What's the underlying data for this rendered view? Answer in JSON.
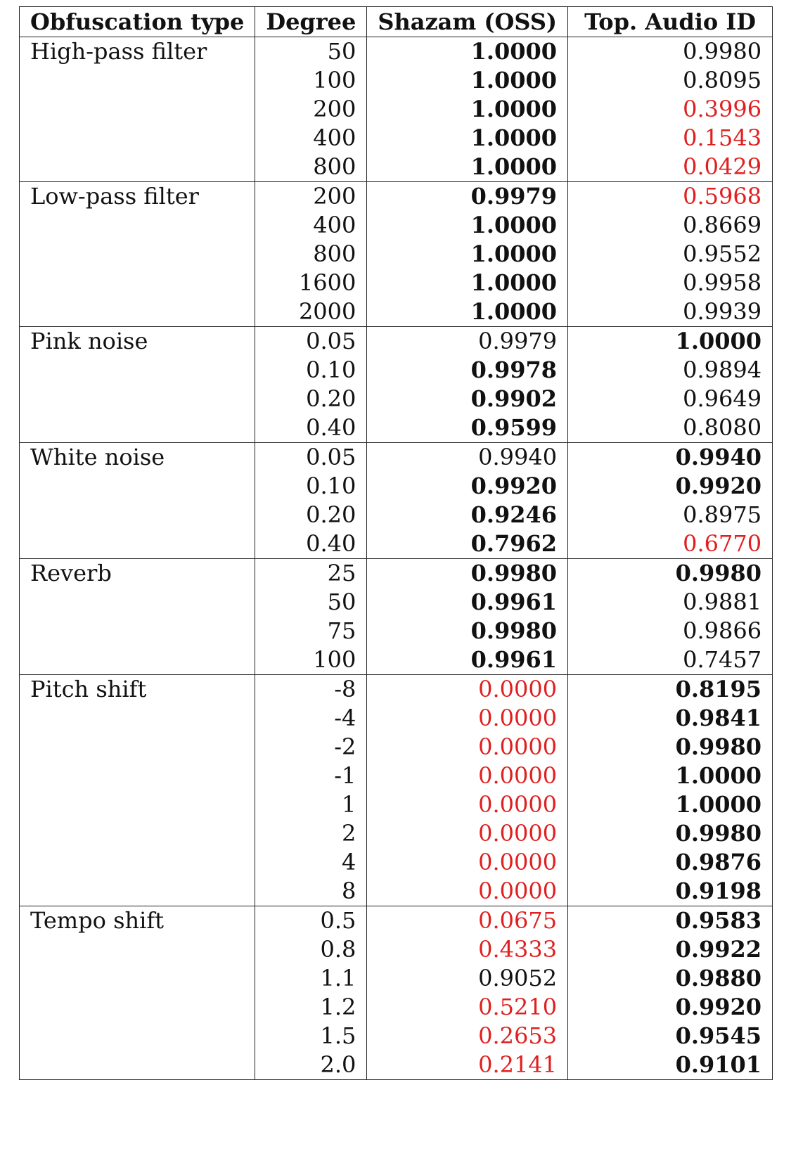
{
  "colors": {
    "highlight": "#e02020"
  },
  "table": {
    "headers": [
      "Obfuscation type",
      "Degree",
      "Shazam (OSS)",
      "Top. Audio ID"
    ],
    "groups": [
      {
        "type": "High-pass filter",
        "rows": [
          {
            "degree": "50",
            "shazam": {
              "v": "1.0000",
              "b": true
            },
            "top": {
              "v": "0.9980"
            }
          },
          {
            "degree": "100",
            "shazam": {
              "v": "1.0000",
              "b": true
            },
            "top": {
              "v": "0.8095"
            }
          },
          {
            "degree": "200",
            "shazam": {
              "v": "1.0000",
              "b": true
            },
            "top": {
              "v": "0.3996",
              "r": true
            }
          },
          {
            "degree": "400",
            "shazam": {
              "v": "1.0000",
              "b": true
            },
            "top": {
              "v": "0.1543",
              "r": true
            }
          },
          {
            "degree": "800",
            "shazam": {
              "v": "1.0000",
              "b": true
            },
            "top": {
              "v": "0.0429",
              "r": true
            }
          }
        ]
      },
      {
        "type": "Low-pass filter",
        "rows": [
          {
            "degree": "200",
            "shazam": {
              "v": "0.9979",
              "b": true
            },
            "top": {
              "v": "0.5968",
              "r": true
            }
          },
          {
            "degree": "400",
            "shazam": {
              "v": "1.0000",
              "b": true
            },
            "top": {
              "v": "0.8669"
            }
          },
          {
            "degree": "800",
            "shazam": {
              "v": "1.0000",
              "b": true
            },
            "top": {
              "v": "0.9552"
            }
          },
          {
            "degree": "1600",
            "shazam": {
              "v": "1.0000",
              "b": true
            },
            "top": {
              "v": "0.9958"
            }
          },
          {
            "degree": "2000",
            "shazam": {
              "v": "1.0000",
              "b": true
            },
            "top": {
              "v": "0.9939"
            }
          }
        ]
      },
      {
        "type": "Pink noise",
        "rows": [
          {
            "degree": "0.05",
            "shazam": {
              "v": "0.9979"
            },
            "top": {
              "v": "1.0000",
              "b": true
            }
          },
          {
            "degree": "0.10",
            "shazam": {
              "v": "0.9978",
              "b": true
            },
            "top": {
              "v": "0.9894"
            }
          },
          {
            "degree": "0.20",
            "shazam": {
              "v": "0.9902",
              "b": true
            },
            "top": {
              "v": "0.9649"
            }
          },
          {
            "degree": "0.40",
            "shazam": {
              "v": "0.9599",
              "b": true
            },
            "top": {
              "v": "0.8080"
            }
          }
        ]
      },
      {
        "type": "White noise",
        "rows": [
          {
            "degree": "0.05",
            "shazam": {
              "v": "0.9940"
            },
            "top": {
              "v": "0.9940",
              "b": true
            }
          },
          {
            "degree": "0.10",
            "shazam": {
              "v": "0.9920",
              "b": true
            },
            "top": {
              "v": "0.9920",
              "b": true
            }
          },
          {
            "degree": "0.20",
            "shazam": {
              "v": "0.9246",
              "b": true
            },
            "top": {
              "v": "0.8975"
            }
          },
          {
            "degree": "0.40",
            "shazam": {
              "v": "0.7962",
              "b": true
            },
            "top": {
              "v": "0.6770",
              "r": true
            }
          }
        ]
      },
      {
        "type": "Reverb",
        "rows": [
          {
            "degree": "25",
            "shazam": {
              "v": "0.9980",
              "b": true
            },
            "top": {
              "v": "0.9980",
              "b": true
            }
          },
          {
            "degree": "50",
            "shazam": {
              "v": "0.9961",
              "b": true
            },
            "top": {
              "v": "0.9881"
            }
          },
          {
            "degree": "75",
            "shazam": {
              "v": "0.9980",
              "b": true
            },
            "top": {
              "v": "0.9866"
            }
          },
          {
            "degree": "100",
            "shazam": {
              "v": "0.9961",
              "b": true
            },
            "top": {
              "v": "0.7457"
            }
          }
        ]
      },
      {
        "type": "Pitch shift",
        "rows": [
          {
            "degree": "-8",
            "shazam": {
              "v": "0.0000",
              "r": true
            },
            "top": {
              "v": "0.8195",
              "b": true
            }
          },
          {
            "degree": "-4",
            "shazam": {
              "v": "0.0000",
              "r": true
            },
            "top": {
              "v": "0.9841",
              "b": true
            }
          },
          {
            "degree": "-2",
            "shazam": {
              "v": "0.0000",
              "r": true
            },
            "top": {
              "v": "0.9980",
              "b": true
            }
          },
          {
            "degree": "-1",
            "shazam": {
              "v": "0.0000",
              "r": true
            },
            "top": {
              "v": "1.0000",
              "b": true
            }
          },
          {
            "degree": "1",
            "shazam": {
              "v": "0.0000",
              "r": true
            },
            "top": {
              "v": "1.0000",
              "b": true
            }
          },
          {
            "degree": "2",
            "shazam": {
              "v": "0.0000",
              "r": true
            },
            "top": {
              "v": "0.9980",
              "b": true
            }
          },
          {
            "degree": "4",
            "shazam": {
              "v": "0.0000",
              "r": true
            },
            "top": {
              "v": "0.9876",
              "b": true
            }
          },
          {
            "degree": "8",
            "shazam": {
              "v": "0.0000",
              "r": true
            },
            "top": {
              "v": "0.9198",
              "b": true
            }
          }
        ]
      },
      {
        "type": "Tempo shift",
        "rows": [
          {
            "degree": "0.5",
            "shazam": {
              "v": "0.0675",
              "r": true
            },
            "top": {
              "v": "0.9583",
              "b": true
            }
          },
          {
            "degree": "0.8",
            "shazam": {
              "v": "0.4333",
              "r": true
            },
            "top": {
              "v": "0.9922",
              "b": true
            }
          },
          {
            "degree": "1.1",
            "shazam": {
              "v": "0.9052"
            },
            "top": {
              "v": "0.9880",
              "b": true
            }
          },
          {
            "degree": "1.2",
            "shazam": {
              "v": "0.5210",
              "r": true
            },
            "top": {
              "v": "0.9920",
              "b": true
            }
          },
          {
            "degree": "1.5",
            "shazam": {
              "v": "0.2653",
              "r": true
            },
            "top": {
              "v": "0.9545",
              "b": true
            }
          },
          {
            "degree": "2.0",
            "shazam": {
              "v": "0.2141",
              "r": true
            },
            "top": {
              "v": "0.9101",
              "b": true
            }
          }
        ]
      }
    ]
  }
}
